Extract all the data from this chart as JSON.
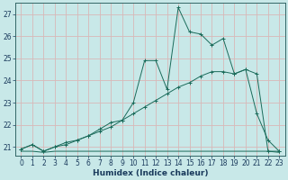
{
  "xlabel": "Humidex (Indice chaleur)",
  "background_color": "#c8e8e8",
  "grid_color": "#d8b8b8",
  "line_color": "#1a6b5a",
  "x_values": [
    0,
    1,
    2,
    3,
    4,
    5,
    6,
    7,
    8,
    9,
    10,
    11,
    12,
    13,
    14,
    15,
    16,
    17,
    18,
    19,
    20,
    21,
    22,
    23
  ],
  "curve1_y": [
    20.9,
    21.1,
    20.8,
    21.0,
    21.1,
    21.3,
    21.5,
    21.7,
    21.9,
    22.2,
    22.5,
    22.8,
    23.1,
    23.4,
    23.7,
    23.9,
    24.2,
    24.4,
    24.4,
    24.3,
    24.5,
    24.3,
    20.8,
    20.8
  ],
  "curve2_y": [
    20.9,
    21.1,
    20.8,
    21.0,
    21.2,
    21.3,
    21.5,
    21.8,
    22.1,
    22.2,
    23.0,
    24.9,
    24.9,
    23.6,
    27.3,
    26.2,
    26.1,
    25.6,
    25.9,
    24.3,
    24.5,
    22.5,
    21.3,
    20.8
  ],
  "curve3_y": [
    20.8,
    20.8,
    20.75,
    20.8,
    20.8,
    20.8,
    20.8,
    20.8,
    20.8,
    20.8,
    20.8,
    20.8,
    20.8,
    20.8,
    20.8,
    20.8,
    20.8,
    20.8,
    20.8,
    20.8,
    20.8,
    20.8,
    20.8,
    20.75
  ],
  "ylim": [
    20.6,
    27.5
  ],
  "yticks": [
    21,
    22,
    23,
    24,
    25,
    26,
    27
  ],
  "xlim": [
    -0.5,
    23.5
  ],
  "xticks": [
    0,
    1,
    2,
    3,
    4,
    5,
    6,
    7,
    8,
    9,
    10,
    11,
    12,
    13,
    14,
    15,
    16,
    17,
    18,
    19,
    20,
    21,
    22,
    23
  ],
  "tick_fontsize": 5.5,
  "xlabel_fontsize": 6.5
}
